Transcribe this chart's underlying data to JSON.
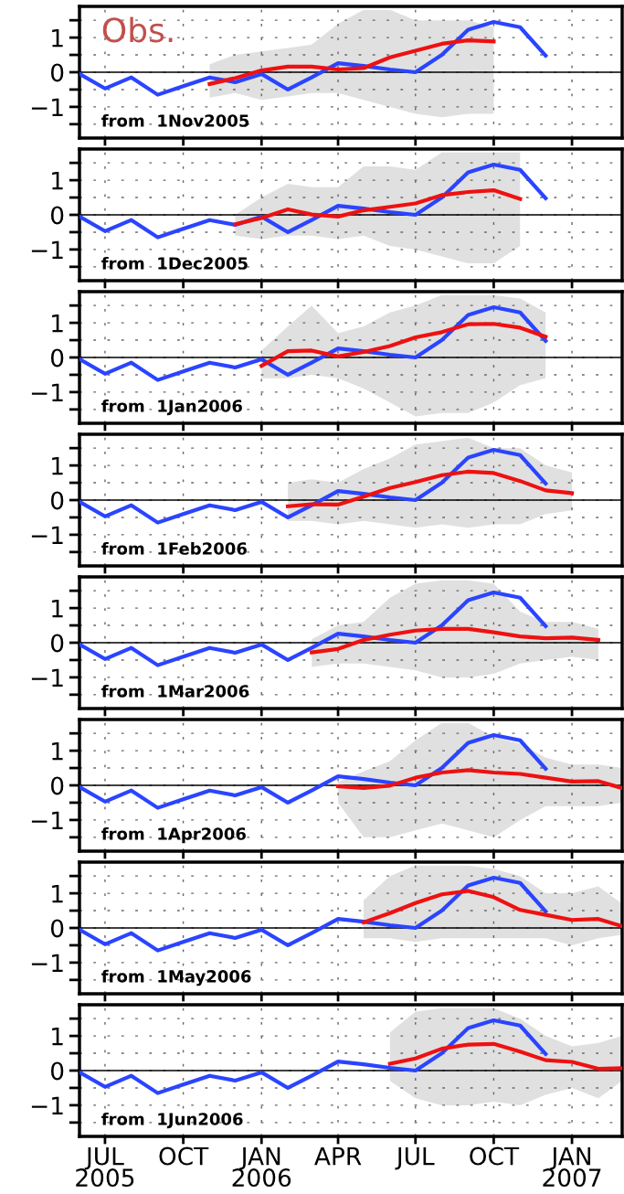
{
  "chart_data": [
    {
      "type": "line",
      "annotations": [
        "Obs.",
        "from  1Nov2005"
      ],
      "xlim": [
        "2005-06",
        "2007-03"
      ],
      "xticks": [
        {
          "value": "2005-07",
          "label": null
        },
        {
          "value": "2005-10",
          "label": null
        },
        {
          "value": "2006-01",
          "label": null
        },
        {
          "value": "2006-04",
          "label": null
        },
        {
          "value": "2006-07",
          "label": null
        },
        {
          "value": "2006-10",
          "label": null
        },
        {
          "value": "2007-01",
          "label": null
        }
      ],
      "ylim": [
        -1.9,
        1.9
      ],
      "yticks": [
        {
          "value": -1.5,
          "label": null
        },
        {
          "value": -1,
          "label": "−1"
        },
        {
          "value": -0.5,
          "label": null
        },
        0,
        {
          "value": 0.5,
          "label": null
        },
        1,
        {
          "value": 1.5,
          "label": null
        }
      ],
      "grid": true,
      "tick_labels": "y",
      "ref_lines": [
        {
          "axis": "y",
          "value": 0,
          "color": "#000000"
        }
      ],
      "series": [
        {
          "color": "#2a44ff",
          "x": [
            "2005-06",
            "2005-07",
            "2005-08",
            "2005-09",
            "2005-10",
            "2005-11",
            "2005-12",
            "2006-01",
            "2006-02",
            "2006-03",
            "2006-04",
            "2006-05",
            "2006-06",
            "2006-07",
            "2006-08",
            "2006-09",
            "2006-10",
            "2006-11",
            "2006-12"
          ],
          "values": [
            -0.05,
            -0.47,
            -0.15,
            -0.65,
            -0.4,
            -0.15,
            -0.29,
            -0.05,
            -0.5,
            -0.15,
            0.26,
            0.18,
            0.08,
            0.0,
            0.5,
            1.23,
            1.45,
            1.3,
            0.48
          ]
        },
        {
          "color": "#ee1111",
          "x": [
            "2005-11",
            "2005-12",
            "2006-01",
            "2006-02",
            "2006-03",
            "2006-04",
            "2006-05",
            "2006-06",
            "2006-07",
            "2006-08",
            "2006-09",
            "2006-10"
          ],
          "values": [
            -0.34,
            -0.17,
            0.05,
            0.16,
            0.16,
            0.08,
            0.12,
            0.43,
            0.62,
            0.82,
            0.92,
            0.89
          ],
          "lower": [
            -0.73,
            -0.6,
            -0.8,
            -0.7,
            -0.6,
            -0.6,
            -0.8,
            -1.0,
            -1.2,
            -1.3,
            -1.2,
            -1.2
          ],
          "upper": [
            0.23,
            0.5,
            0.6,
            0.7,
            0.8,
            1.4,
            1.8,
            1.8,
            1.5,
            1.5,
            1.5,
            1.3
          ]
        }
      ]
    },
    {
      "type": "line",
      "annotations": [
        "from  1Dec2005"
      ],
      "xlim": [
        "2005-06",
        "2007-03"
      ],
      "xticks": [
        {
          "value": "2005-07",
          "label": null
        },
        {
          "value": "2005-10",
          "label": null
        },
        {
          "value": "2006-01",
          "label": null
        },
        {
          "value": "2006-04",
          "label": null
        },
        {
          "value": "2006-07",
          "label": null
        },
        {
          "value": "2006-10",
          "label": null
        },
        {
          "value": "2007-01",
          "label": null
        }
      ],
      "ylim": [
        -1.9,
        1.9
      ],
      "yticks": [
        {
          "value": -1.5,
          "label": null
        },
        {
          "value": -1,
          "label": "−1"
        },
        {
          "value": -0.5,
          "label": null
        },
        0,
        {
          "value": 0.5,
          "label": null
        },
        1,
        {
          "value": 1.5,
          "label": null
        }
      ],
      "grid": true,
      "tick_labels": "y",
      "ref_lines": [
        {
          "axis": "y",
          "value": 0,
          "color": "#000000"
        }
      ],
      "series": [
        {
          "color": "#2a44ff",
          "x": [
            "2005-06",
            "2005-07",
            "2005-08",
            "2005-09",
            "2005-10",
            "2005-11",
            "2005-12",
            "2006-01",
            "2006-02",
            "2006-03",
            "2006-04",
            "2006-05",
            "2006-06",
            "2006-07",
            "2006-08",
            "2006-09",
            "2006-10",
            "2006-11",
            "2006-12"
          ],
          "values": [
            -0.05,
            -0.47,
            -0.15,
            -0.65,
            -0.4,
            -0.15,
            -0.29,
            -0.05,
            -0.5,
            -0.15,
            0.26,
            0.18,
            0.08,
            0.0,
            0.5,
            1.23,
            1.45,
            1.3,
            0.48
          ]
        },
        {
          "color": "#ee1111",
          "x": [
            "2005-12",
            "2006-01",
            "2006-02",
            "2006-03",
            "2006-04",
            "2006-05",
            "2006-06",
            "2006-07",
            "2006-08",
            "2006-09",
            "2006-10",
            "2006-11"
          ],
          "values": [
            -0.27,
            -0.09,
            0.16,
            0.01,
            -0.05,
            0.13,
            0.23,
            0.33,
            0.57,
            0.66,
            0.71,
            0.46
          ],
          "lower": [
            -0.6,
            -0.7,
            -0.6,
            -0.6,
            -0.7,
            -0.6,
            -0.9,
            -1.0,
            -1.2,
            -1.4,
            -1.4,
            -0.9
          ],
          "upper": [
            0.0,
            0.5,
            0.9,
            0.8,
            0.8,
            1.4,
            1.4,
            1.3,
            1.8,
            1.8,
            1.8,
            1.8
          ]
        }
      ]
    },
    {
      "type": "line",
      "annotations": [
        "from  1Jan2006"
      ],
      "xlim": [
        "2005-06",
        "2007-03"
      ],
      "xticks": [
        {
          "value": "2005-07",
          "label": null
        },
        {
          "value": "2005-10",
          "label": null
        },
        {
          "value": "2006-01",
          "label": null
        },
        {
          "value": "2006-04",
          "label": null
        },
        {
          "value": "2006-07",
          "label": null
        },
        {
          "value": "2006-10",
          "label": null
        },
        {
          "value": "2007-01",
          "label": null
        }
      ],
      "ylim": [
        -1.9,
        1.9
      ],
      "yticks": [
        {
          "value": -1.5,
          "label": null
        },
        {
          "value": -1,
          "label": "−1"
        },
        {
          "value": -0.5,
          "label": null
        },
        0,
        {
          "value": 0.5,
          "label": null
        },
        1,
        {
          "value": 1.5,
          "label": null
        }
      ],
      "grid": true,
      "tick_labels": "y",
      "ref_lines": [
        {
          "axis": "y",
          "value": 0,
          "color": "#000000"
        }
      ],
      "series": [
        {
          "color": "#2a44ff",
          "x": [
            "2005-06",
            "2005-07",
            "2005-08",
            "2005-09",
            "2005-10",
            "2005-11",
            "2005-12",
            "2006-01",
            "2006-02",
            "2006-03",
            "2006-04",
            "2006-05",
            "2006-06",
            "2006-07",
            "2006-08",
            "2006-09",
            "2006-10",
            "2006-11",
            "2006-12"
          ],
          "values": [
            -0.05,
            -0.47,
            -0.15,
            -0.65,
            -0.4,
            -0.15,
            -0.29,
            -0.05,
            -0.5,
            -0.15,
            0.26,
            0.18,
            0.08,
            0.0,
            0.5,
            1.23,
            1.45,
            1.3,
            0.48
          ]
        },
        {
          "color": "#ee1111",
          "x": [
            "2006-01",
            "2006-02",
            "2006-03",
            "2006-04",
            "2006-05",
            "2006-06",
            "2006-07",
            "2006-08",
            "2006-09",
            "2006-10",
            "2006-11",
            "2006-12"
          ],
          "values": [
            -0.24,
            0.18,
            0.2,
            0.03,
            0.16,
            0.33,
            0.58,
            0.73,
            0.96,
            0.97,
            0.86,
            0.6
          ],
          "lower": [
            -0.6,
            -0.6,
            -0.5,
            -0.6,
            -0.9,
            -1.3,
            -1.7,
            -1.6,
            -1.6,
            -1.3,
            -0.8,
            -0.6
          ],
          "upper": [
            0.2,
            0.9,
            1.5,
            0.7,
            0.9,
            1.3,
            1.5,
            1.8,
            1.8,
            1.8,
            1.7,
            1.3
          ]
        }
      ]
    },
    {
      "type": "line",
      "annotations": [
        "from  1Feb2006"
      ],
      "xlim": [
        "2005-06",
        "2007-03"
      ],
      "xticks": [
        {
          "value": "2005-07",
          "label": null
        },
        {
          "value": "2005-10",
          "label": null
        },
        {
          "value": "2006-01",
          "label": null
        },
        {
          "value": "2006-04",
          "label": null
        },
        {
          "value": "2006-07",
          "label": null
        },
        {
          "value": "2006-10",
          "label": null
        },
        {
          "value": "2007-01",
          "label": null
        }
      ],
      "ylim": [
        -1.9,
        1.9
      ],
      "yticks": [
        {
          "value": -1.5,
          "label": null
        },
        {
          "value": -1,
          "label": "−1"
        },
        {
          "value": -0.5,
          "label": null
        },
        0,
        {
          "value": 0.5,
          "label": null
        },
        1,
        {
          "value": 1.5,
          "label": null
        }
      ],
      "grid": true,
      "tick_labels": "y",
      "ref_lines": [
        {
          "axis": "y",
          "value": 0,
          "color": "#000000"
        }
      ],
      "series": [
        {
          "color": "#2a44ff",
          "x": [
            "2005-06",
            "2005-07",
            "2005-08",
            "2005-09",
            "2005-10",
            "2005-11",
            "2005-12",
            "2006-01",
            "2006-02",
            "2006-03",
            "2006-04",
            "2006-05",
            "2006-06",
            "2006-07",
            "2006-08",
            "2006-09",
            "2006-10",
            "2006-11",
            "2006-12"
          ],
          "values": [
            -0.05,
            -0.47,
            -0.15,
            -0.65,
            -0.4,
            -0.15,
            -0.29,
            -0.05,
            -0.5,
            -0.15,
            0.26,
            0.18,
            0.08,
            0.0,
            0.5,
            1.23,
            1.45,
            1.3,
            0.48
          ]
        },
        {
          "color": "#ee1111",
          "x": [
            "2006-02",
            "2006-03",
            "2006-04",
            "2006-05",
            "2006-06",
            "2006-07",
            "2006-08",
            "2006-09",
            "2006-10",
            "2006-11",
            "2006-12",
            "2007-01"
          ],
          "values": [
            -0.18,
            -0.12,
            -0.13,
            0.1,
            0.35,
            0.52,
            0.72,
            0.82,
            0.78,
            0.55,
            0.28,
            0.2
          ],
          "lower": [
            -0.6,
            -0.6,
            -0.7,
            -0.6,
            -0.7,
            -0.8,
            -0.7,
            -0.8,
            -0.7,
            -0.7,
            -0.4,
            -0.3
          ],
          "upper": [
            0.5,
            0.6,
            0.5,
            0.9,
            1.2,
            1.6,
            1.7,
            1.8,
            1.5,
            1.5,
            1.0,
            0.8
          ]
        }
      ]
    },
    {
      "type": "line",
      "annotations": [
        "from  1Mar2006"
      ],
      "xlim": [
        "2005-06",
        "2007-03"
      ],
      "xticks": [
        {
          "value": "2005-07",
          "label": null
        },
        {
          "value": "2005-10",
          "label": null
        },
        {
          "value": "2006-01",
          "label": null
        },
        {
          "value": "2006-04",
          "label": null
        },
        {
          "value": "2006-07",
          "label": null
        },
        {
          "value": "2006-10",
          "label": null
        },
        {
          "value": "2007-01",
          "label": null
        }
      ],
      "ylim": [
        -1.9,
        1.9
      ],
      "yticks": [
        {
          "value": -1.5,
          "label": null
        },
        {
          "value": -1,
          "label": "−1"
        },
        {
          "value": -0.5,
          "label": null
        },
        0,
        {
          "value": 0.5,
          "label": null
        },
        1,
        {
          "value": 1.5,
          "label": null
        }
      ],
      "grid": true,
      "tick_labels": "y",
      "ref_lines": [
        {
          "axis": "y",
          "value": 0,
          "color": "#000000"
        }
      ],
      "series": [
        {
          "color": "#2a44ff",
          "x": [
            "2005-06",
            "2005-07",
            "2005-08",
            "2005-09",
            "2005-10",
            "2005-11",
            "2005-12",
            "2006-01",
            "2006-02",
            "2006-03",
            "2006-04",
            "2006-05",
            "2006-06",
            "2006-07",
            "2006-08",
            "2006-09",
            "2006-10",
            "2006-11",
            "2006-12"
          ],
          "values": [
            -0.05,
            -0.47,
            -0.15,
            -0.65,
            -0.4,
            -0.15,
            -0.29,
            -0.05,
            -0.5,
            -0.15,
            0.26,
            0.18,
            0.08,
            0.0,
            0.5,
            1.23,
            1.45,
            1.3,
            0.48
          ]
        },
        {
          "color": "#ee1111",
          "x": [
            "2006-03",
            "2006-04",
            "2006-05",
            "2006-06",
            "2006-07",
            "2006-08",
            "2006-09",
            "2006-10",
            "2006-11",
            "2006-12",
            "2007-01",
            "2007-02"
          ],
          "values": [
            -0.28,
            -0.18,
            0.08,
            0.23,
            0.35,
            0.4,
            0.4,
            0.3,
            0.18,
            0.13,
            0.15,
            0.08
          ],
          "lower": [
            -0.7,
            -0.6,
            -0.6,
            -0.7,
            -0.8,
            -1.0,
            -1.0,
            -0.9,
            -0.6,
            -0.5,
            -0.4,
            -0.5
          ],
          "upper": [
            0.1,
            0.5,
            0.6,
            1.3,
            1.7,
            1.8,
            1.8,
            1.7,
            0.9,
            0.6,
            0.6,
            0.4
          ]
        }
      ]
    },
    {
      "type": "line",
      "annotations": [
        "from  1Apr2006"
      ],
      "xlim": [
        "2005-06",
        "2007-03"
      ],
      "xticks": [
        {
          "value": "2005-07",
          "label": null
        },
        {
          "value": "2005-10",
          "label": null
        },
        {
          "value": "2006-01",
          "label": null
        },
        {
          "value": "2006-04",
          "label": null
        },
        {
          "value": "2006-07",
          "label": null
        },
        {
          "value": "2006-10",
          "label": null
        },
        {
          "value": "2007-01",
          "label": null
        }
      ],
      "ylim": [
        -1.9,
        1.9
      ],
      "yticks": [
        {
          "value": -1.5,
          "label": null
        },
        {
          "value": -1,
          "label": "−1"
        },
        {
          "value": -0.5,
          "label": null
        },
        0,
        {
          "value": 0.5,
          "label": null
        },
        1,
        {
          "value": 1.5,
          "label": null
        }
      ],
      "grid": true,
      "tick_labels": "y",
      "ref_lines": [
        {
          "axis": "y",
          "value": 0,
          "color": "#000000"
        }
      ],
      "series": [
        {
          "color": "#2a44ff",
          "x": [
            "2005-06",
            "2005-07",
            "2005-08",
            "2005-09",
            "2005-10",
            "2005-11",
            "2005-12",
            "2006-01",
            "2006-02",
            "2006-03",
            "2006-04",
            "2006-05",
            "2006-06",
            "2006-07",
            "2006-08",
            "2006-09",
            "2006-10",
            "2006-11",
            "2006-12"
          ],
          "values": [
            -0.05,
            -0.47,
            -0.15,
            -0.65,
            -0.4,
            -0.15,
            -0.29,
            -0.05,
            -0.5,
            -0.15,
            0.26,
            0.18,
            0.08,
            0.0,
            0.5,
            1.23,
            1.45,
            1.3,
            0.48
          ]
        },
        {
          "color": "#ee1111",
          "x": [
            "2006-04",
            "2006-05",
            "2006-06",
            "2006-07",
            "2006-08",
            "2006-09",
            "2006-10",
            "2006-11",
            "2006-12",
            "2007-01",
            "2007-02",
            "2007-03"
          ],
          "values": [
            -0.03,
            -0.08,
            -0.01,
            0.22,
            0.37,
            0.44,
            0.37,
            0.33,
            0.22,
            0.11,
            0.12,
            -0.08
          ],
          "lower": [
            -0.5,
            -1.5,
            -1.5,
            -1.3,
            -1.1,
            -1.3,
            -1.5,
            -1.0,
            -0.6,
            -0.6,
            -0.6,
            -0.5
          ],
          "upper": [
            0.1,
            0.4,
            0.7,
            1.3,
            1.8,
            1.8,
            1.4,
            1.2,
            0.8,
            0.6,
            0.6,
            0.5
          ]
        }
      ]
    },
    {
      "type": "line",
      "annotations": [
        "from  1May2006"
      ],
      "xlim": [
        "2005-06",
        "2007-03"
      ],
      "xticks": [
        {
          "value": "2005-07",
          "label": null
        },
        {
          "value": "2005-10",
          "label": null
        },
        {
          "value": "2006-01",
          "label": null
        },
        {
          "value": "2006-04",
          "label": null
        },
        {
          "value": "2006-07",
          "label": null
        },
        {
          "value": "2006-10",
          "label": null
        },
        {
          "value": "2007-01",
          "label": null
        }
      ],
      "ylim": [
        -1.9,
        1.9
      ],
      "yticks": [
        {
          "value": -1.5,
          "label": null
        },
        {
          "value": -1,
          "label": "−1"
        },
        {
          "value": -0.5,
          "label": null
        },
        0,
        {
          "value": 0.5,
          "label": null
        },
        1,
        {
          "value": 1.5,
          "label": null
        }
      ],
      "grid": true,
      "tick_labels": "y",
      "ref_lines": [
        {
          "axis": "y",
          "value": 0,
          "color": "#000000"
        }
      ],
      "series": [
        {
          "color": "#2a44ff",
          "x": [
            "2005-06",
            "2005-07",
            "2005-08",
            "2005-09",
            "2005-10",
            "2005-11",
            "2005-12",
            "2006-01",
            "2006-02",
            "2006-03",
            "2006-04",
            "2006-05",
            "2006-06",
            "2006-07",
            "2006-08",
            "2006-09",
            "2006-10",
            "2006-11",
            "2006-12"
          ],
          "values": [
            -0.05,
            -0.47,
            -0.15,
            -0.65,
            -0.4,
            -0.15,
            -0.29,
            -0.05,
            -0.5,
            -0.15,
            0.26,
            0.18,
            0.08,
            0.0,
            0.5,
            1.23,
            1.45,
            1.3,
            0.48
          ]
        },
        {
          "color": "#ee1111",
          "x": [
            "2006-05",
            "2006-06",
            "2006-07",
            "2006-08",
            "2006-09",
            "2006-10",
            "2006-11",
            "2006-12",
            "2007-01",
            "2007-02",
            "2007-03"
          ],
          "values": [
            0.16,
            0.43,
            0.72,
            0.97,
            1.07,
            0.89,
            0.52,
            0.38,
            0.23,
            0.26,
            0.05
          ],
          "lower": [
            -0.3,
            -0.3,
            -0.4,
            -0.3,
            -0.3,
            -0.3,
            -0.3,
            -0.3,
            -0.5,
            -0.3,
            -0.2
          ],
          "upper": [
            0.8,
            1.5,
            1.8,
            1.8,
            1.8,
            1.7,
            1.5,
            1.0,
            1.0,
            1.2,
            0.7
          ]
        }
      ]
    },
    {
      "type": "line",
      "annotations": [
        "from  1Jun2006"
      ],
      "xlim": [
        "2005-06",
        "2007-03"
      ],
      "xticks": [
        {
          "value": "2005-07",
          "label": "JUL\n2005"
        },
        {
          "value": "2005-10",
          "label": "OCT"
        },
        {
          "value": "2006-01",
          "label": "JAN\n2006"
        },
        {
          "value": "2006-04",
          "label": "APR"
        },
        {
          "value": "2006-07",
          "label": "JUL"
        },
        {
          "value": "2006-10",
          "label": "OCT"
        },
        {
          "value": "2007-01",
          "label": "JAN\n2007"
        }
      ],
      "ylim": [
        -1.9,
        1.9
      ],
      "yticks": [
        {
          "value": -1.5,
          "label": null
        },
        {
          "value": -1,
          "label": "−1"
        },
        {
          "value": -0.5,
          "label": null
        },
        0,
        {
          "value": 0.5,
          "label": null
        },
        1,
        {
          "value": 1.5,
          "label": null
        }
      ],
      "grid": true,
      "ref_lines": [
        {
          "axis": "y",
          "value": 0,
          "color": "#000000"
        }
      ],
      "series": [
        {
          "color": "#2a44ff",
          "x": [
            "2005-06",
            "2005-07",
            "2005-08",
            "2005-09",
            "2005-10",
            "2005-11",
            "2005-12",
            "2006-01",
            "2006-02",
            "2006-03",
            "2006-04",
            "2006-05",
            "2006-06",
            "2006-07",
            "2006-08",
            "2006-09",
            "2006-10",
            "2006-11",
            "2006-12"
          ],
          "values": [
            -0.05,
            -0.47,
            -0.15,
            -0.65,
            -0.4,
            -0.15,
            -0.29,
            -0.05,
            -0.5,
            -0.15,
            0.26,
            0.18,
            0.08,
            0.0,
            0.5,
            1.23,
            1.45,
            1.3,
            0.48
          ]
        },
        {
          "color": "#ee1111",
          "x": [
            "2006-06",
            "2006-07",
            "2006-08",
            "2006-09",
            "2006-10",
            "2006-11",
            "2006-12",
            "2007-01",
            "2007-02",
            "2007-03"
          ],
          "values": [
            0.2,
            0.35,
            0.63,
            0.75,
            0.77,
            0.55,
            0.3,
            0.25,
            0.05,
            0.07
          ],
          "lower": [
            -0.3,
            -0.8,
            -1.0,
            -1.0,
            -0.9,
            -1.0,
            -0.7,
            -0.5,
            -0.8,
            -0.3
          ],
          "upper": [
            1.1,
            1.7,
            1.8,
            1.8,
            1.8,
            1.5,
            1.0,
            0.7,
            0.8,
            1.0
          ]
        }
      ]
    }
  ]
}
